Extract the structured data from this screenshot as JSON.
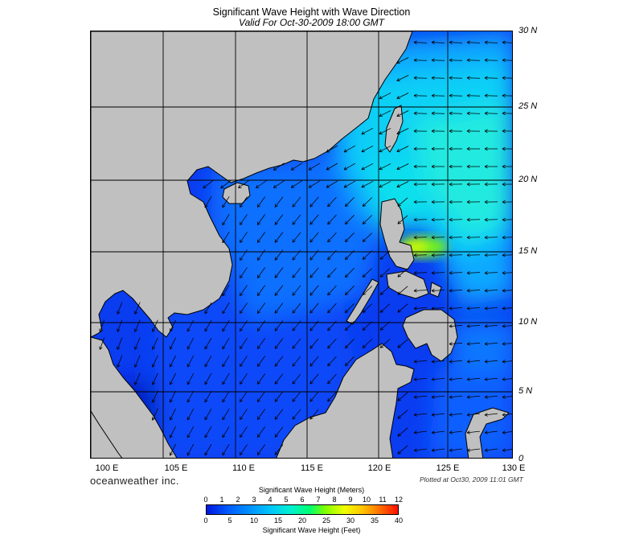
{
  "title": "Significant Wave Height with Wave Direction",
  "subtitle": "Valid For Oct-30-2009 18:00 GMT",
  "brand": "oceanweather inc.",
  "plotted": "Plotted at Oct30, 2009 11:01 GMT",
  "lon_labels": [
    "100 E",
    "105 E",
    "110 E",
    "115 E",
    "120 E",
    "125 E",
    "130 E"
  ],
  "lat_labels": [
    "30 N",
    "25 N",
    "20 N",
    "15 N",
    "10 N",
    "5 N",
    "0"
  ],
  "colorbar": {
    "title_meters": "Significant Wave Height (Meters)",
    "title_feet": "Significant Wave Height (Feet)",
    "meters_ticks": [
      "0",
      "1",
      "2",
      "3",
      "4",
      "5",
      "6",
      "7",
      "8",
      "9",
      "10",
      "11",
      "12"
    ],
    "feet_ticks": [
      "0",
      "5",
      "10",
      "15",
      "20",
      "25",
      "30",
      "35",
      "40"
    ]
  },
  "colors": {
    "land": "#c0c0c0",
    "low": "#0018e0",
    "mid": "#00c8f8",
    "high": "#80ff00"
  }
}
